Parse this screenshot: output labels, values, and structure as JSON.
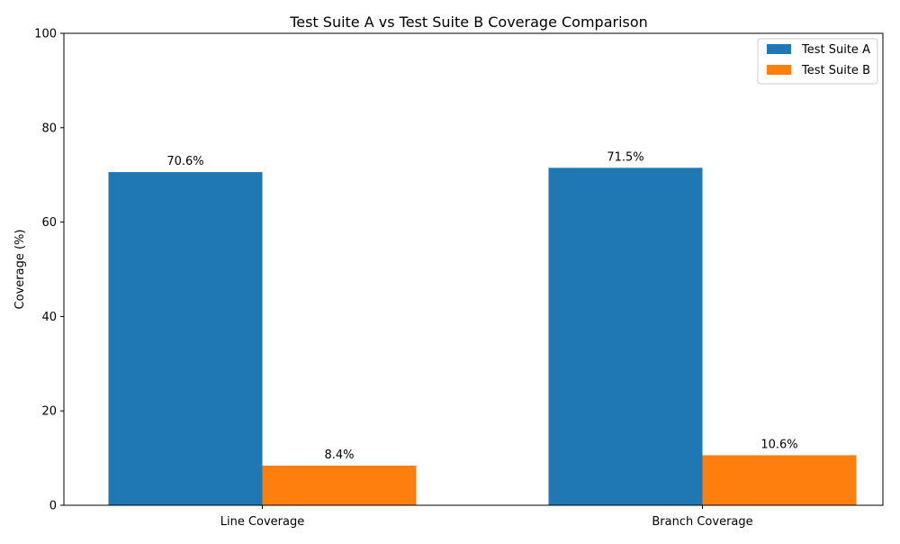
{
  "chart_data": {
    "type": "bar",
    "title": "Test Suite A vs Test Suite B Coverage Comparison",
    "xlabel": "",
    "ylabel": "Coverage (%)",
    "categories": [
      "Line Coverage",
      "Branch Coverage"
    ],
    "series": [
      {
        "name": "Test Suite A",
        "values": [
          70.6,
          71.5
        ],
        "labels": [
          "70.6%",
          "71.5%"
        ],
        "color": "#1f77b4"
      },
      {
        "name": "Test Suite B",
        "values": [
          8.4,
          10.6
        ],
        "labels": [
          "8.4%",
          "10.6%"
        ],
        "color": "#ff7f0e"
      }
    ],
    "ylim": [
      0,
      100
    ],
    "yticks": [
      0,
      20,
      40,
      60,
      80,
      100
    ],
    "grid": false,
    "legend_position": "top-right"
  }
}
